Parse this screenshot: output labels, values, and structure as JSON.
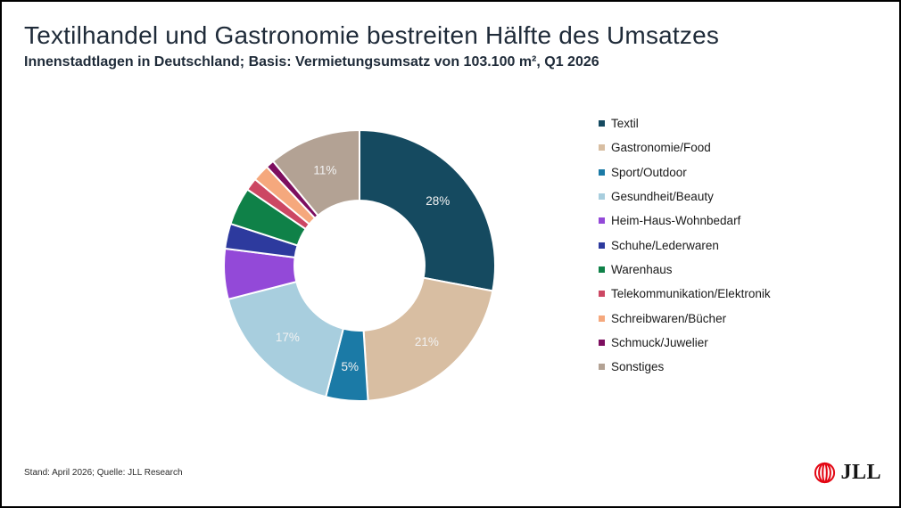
{
  "header": {
    "title": "Textilhandel und Gastronomie bestreiten Hälfte des Umsatzes",
    "subtitle": "Innenstadtlagen in Deutschland; Basis: Vermietungsumsatz von 103.100 m², Q1 2026"
  },
  "chart_data": {
    "type": "pie",
    "variant": "donut",
    "title": "Textilhandel und Gastronomie bestreiten Hälfte des Umsatzes",
    "subtitle": "Innenstadtlagen in Deutschland; Basis: Vermietungsumsatz von 103.100 m², Q1 2026",
    "unit": "%",
    "start_angle_deg": 0,
    "direction": "clockwise",
    "hole_ratio": 0.48,
    "legend_position": "right",
    "segments": [
      {
        "label": "Textil",
        "value": 28,
        "pct_label": "28%",
        "color": "#154a60"
      },
      {
        "label": "Gastronomie/Food",
        "value": 21,
        "pct_label": "21%",
        "color": "#d8bea2"
      },
      {
        "label": "Sport/Outdoor",
        "value": 5,
        "pct_label": "5%",
        "color": "#1b7aa6"
      },
      {
        "label": "Gesundheit/Beauty",
        "value": 17,
        "pct_label": "17%",
        "color": "#a8cede"
      },
      {
        "label": "Heim-Haus-Wohnbedarf",
        "value": 6,
        "pct_label": "",
        "color": "#9349d8"
      },
      {
        "label": "Schuhe/Lederwaren",
        "value": 3,
        "pct_label": "",
        "color": "#2d3a9e"
      },
      {
        "label": "Warenhaus",
        "value": 4.5,
        "pct_label": "",
        "color": "#0f8148"
      },
      {
        "label": "Telekommunikation/Elektronik",
        "value": 1.5,
        "pct_label": "",
        "color": "#cc4763"
      },
      {
        "label": "Schreibwaren/Bücher",
        "value": 2,
        "pct_label": "",
        "color": "#f5a87d"
      },
      {
        "label": "Schmuck/Juwelier",
        "value": 1,
        "pct_label": "",
        "color": "#7d0e5f"
      },
      {
        "label": "Sonstiges",
        "value": 11,
        "pct_label": "11%",
        "color": "#b3a294"
      }
    ]
  },
  "footer": {
    "source": "Stand: April 2026; Quelle: JLL Research",
    "logo_text": "JLL",
    "logo_color": "#e30613"
  }
}
